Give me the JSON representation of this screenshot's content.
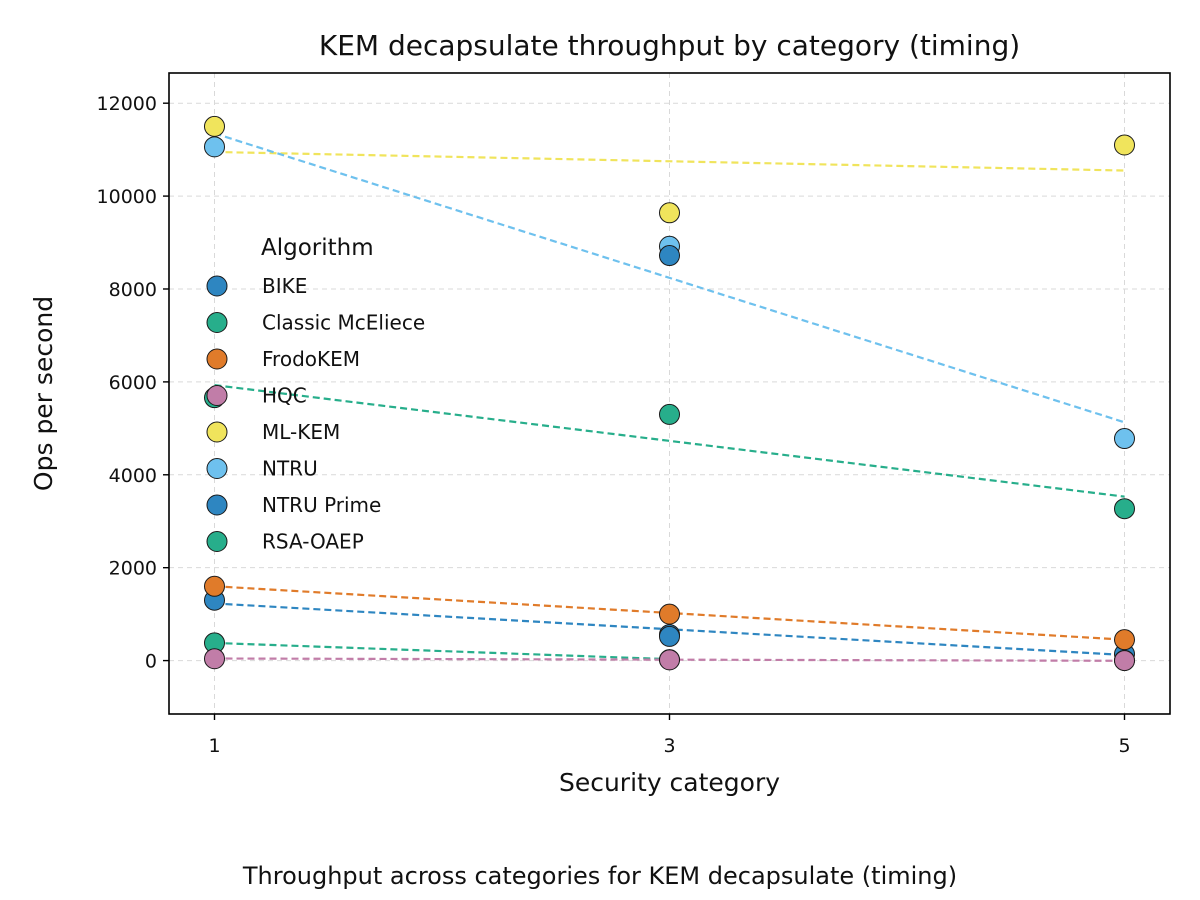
{
  "chart_data": {
    "type": "scatter",
    "title": "KEM decapsulate throughput by category (timing)",
    "xlabel": "Security category",
    "ylabel": "Ops per second",
    "caption": "Throughput across categories for KEM decapsulate (timing)",
    "x_ticks": [
      1,
      3,
      5
    ],
    "y_ticks": [
      0,
      2000,
      4000,
      6000,
      8000,
      10000,
      12000
    ],
    "xlim": [
      0.8,
      5.2
    ],
    "ylim": [
      -1150,
      12650
    ],
    "grid": true,
    "legend": {
      "title": "Algorithm",
      "placement": "center-left"
    },
    "series": [
      {
        "name": "BIKE",
        "color": "#2E86C1",
        "points": [
          [
            1,
            1300
          ],
          [
            3,
            560
          ],
          [
            5,
            140
          ]
        ],
        "trend": [
          [
            1,
            1230
          ],
          [
            5,
            120
          ]
        ]
      },
      {
        "name": "Classic McEliece",
        "color": "#27AE8B",
        "points": [
          [
            1,
            380
          ],
          [
            3,
            20
          ],
          [
            5,
            5
          ]
        ],
        "trend": [
          [
            1,
            380
          ],
          [
            3,
            30
          ]
        ]
      },
      {
        "name": "FrodoKEM",
        "color": "#E07B2A",
        "points": [
          [
            1,
            1600
          ],
          [
            3,
            1000
          ],
          [
            5,
            450
          ]
        ],
        "trend": [
          [
            1,
            1600
          ],
          [
            5,
            450
          ]
        ]
      },
      {
        "name": "HQC",
        "color": "#C17DA8",
        "points": [
          [
            1,
            40
          ],
          [
            3,
            15
          ],
          [
            5,
            0
          ]
        ],
        "trend": [
          [
            1,
            45
          ],
          [
            5,
            -5
          ]
        ]
      },
      {
        "name": "ML-KEM",
        "color": "#F0E45C",
        "points": [
          [
            1,
            11500
          ],
          [
            3,
            9640
          ],
          [
            5,
            11100
          ]
        ],
        "trend": [
          [
            1,
            10950
          ],
          [
            5,
            10550
          ]
        ]
      },
      {
        "name": "NTRU",
        "color": "#6EC1EE",
        "points": [
          [
            1,
            11060
          ],
          [
            3,
            8920
          ],
          [
            5,
            4780
          ]
        ],
        "trend": [
          [
            1,
            11350
          ],
          [
            5,
            5130
          ]
        ]
      },
      {
        "name": "NTRU Prime",
        "color": "#2E86C1",
        "points": [
          [
            3,
            8720
          ],
          [
            3,
            520
          ]
        ],
        "trend": []
      },
      {
        "name": "RSA-OAEP",
        "color": "#27AE8B",
        "points": [
          [
            1,
            5660
          ],
          [
            3,
            5300
          ],
          [
            5,
            3270
          ]
        ],
        "trend": [
          [
            1,
            5930
          ],
          [
            5,
            3530
          ]
        ]
      }
    ]
  }
}
